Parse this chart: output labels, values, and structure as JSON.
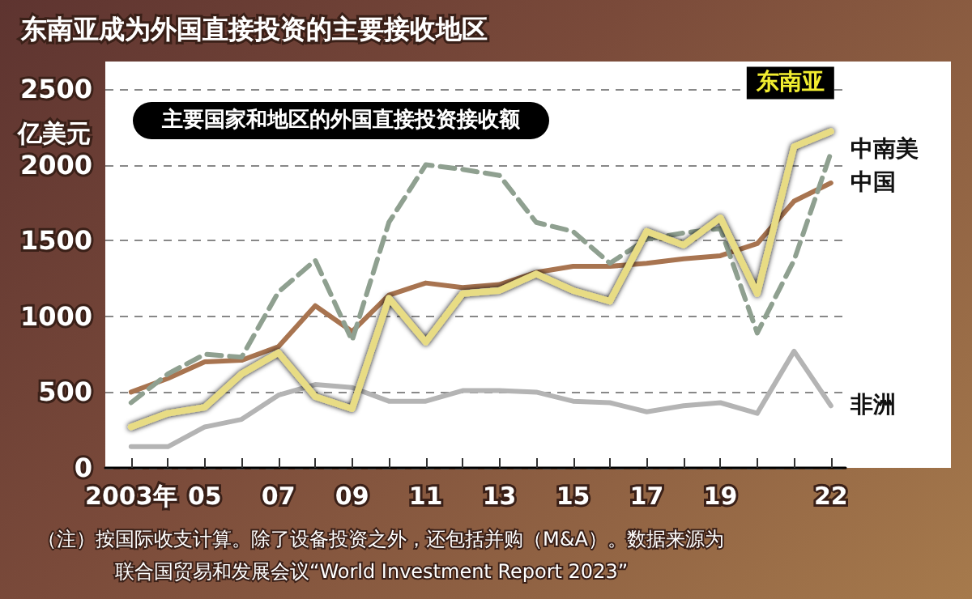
{
  "chart_data": {
    "type": "line",
    "title": "东南亚成为外国直接投资的主要接收地区",
    "subtitle": "主要国家和地区的外国直接投资接收额",
    "ylabel": "亿美元",
    "annotations": [
      "（注）按国际收支计算。除了设备投资之外，还包括并购（M&A）。数据来源为",
      "联合国贸易和发展会议“World Investment Report 2023”"
    ],
    "x": [
      2003,
      2004,
      2005,
      2006,
      2007,
      2008,
      2009,
      2010,
      2011,
      2012,
      2013,
      2014,
      2015,
      2016,
      2017,
      2018,
      2019,
      2020,
      2021,
      2022
    ],
    "series": [
      {
        "name": "非洲",
        "color": "#b4b4b4",
        "values": [
          140,
          140,
          270,
          320,
          480,
          550,
          530,
          440,
          440,
          510,
          510,
          500,
          440,
          430,
          370,
          410,
          430,
          360,
          770,
          410
        ]
      },
      {
        "name": "中国",
        "color": "#a87450",
        "values": [
          500,
          590,
          700,
          710,
          800,
          1070,
          900,
          1140,
          1220,
          1190,
          1210,
          1290,
          1330,
          1330,
          1350,
          1380,
          1400,
          1480,
          1760,
          1880
        ]
      },
      {
        "name": "中南美",
        "color": "#8fa090",
        "line_style": "dashed",
        "values": [
          430,
          620,
          750,
          730,
          1160,
          1370,
          840,
          1620,
          2000,
          1970,
          1930,
          1620,
          1560,
          1350,
          1510,
          1550,
          1580,
          890,
          1370,
          2080
        ]
      },
      {
        "name": "东南亚",
        "color": "#e8dc84",
        "values": [
          270,
          360,
          400,
          620,
          760,
          470,
          390,
          1120,
          830,
          1150,
          1170,
          1280,
          1170,
          1100,
          1560,
          1470,
          1650,
          1150,
          2120,
          2220
        ]
      }
    ],
    "xlim": [
      2002.3,
      2022.4
    ],
    "xticks": [
      {
        "value": 2003,
        "label": "2003年"
      },
      {
        "value": 2004,
        "label": null
      },
      {
        "value": 2005,
        "label": "05"
      },
      {
        "value": 2006,
        "label": null
      },
      {
        "value": 2007,
        "label": "07"
      },
      {
        "value": 2008,
        "label": null
      },
      {
        "value": 2009,
        "label": "09"
      },
      {
        "value": 2010,
        "label": null
      },
      {
        "value": 2011,
        "label": "11"
      },
      {
        "value": 2012,
        "label": null
      },
      {
        "value": 2013,
        "label": "13"
      },
      {
        "value": 2014,
        "label": null
      },
      {
        "value": 2015,
        "label": "15"
      },
      {
        "value": 2016,
        "label": null
      },
      {
        "value": 2017,
        "label": "17"
      },
      {
        "value": 2018,
        "label": null
      },
      {
        "value": 2019,
        "label": "19"
      },
      {
        "value": 2020,
        "label": null
      },
      {
        "value": 2021,
        "label": null
      },
      {
        "value": 2022,
        "label": "22"
      }
    ],
    "ylim": [
      0,
      2500
    ],
    "yticks": [
      0,
      500,
      1000,
      1500,
      2000,
      2500
    ],
    "grid": "y",
    "legend": false,
    "marker": "none",
    "line_style": "solid"
  }
}
